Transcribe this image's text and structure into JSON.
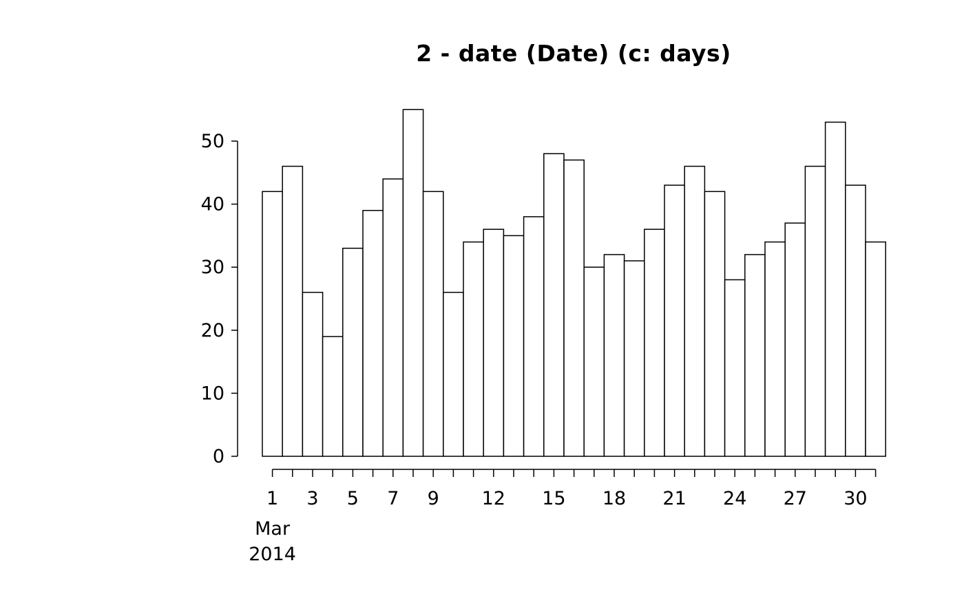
{
  "title": "2 - date (Date) (c: days)",
  "chart_data": {
    "type": "bar",
    "title": "2 - date (Date) (c: days)",
    "xlabel": "",
    "ylabel": "",
    "x": [
      1,
      2,
      3,
      4,
      5,
      6,
      7,
      8,
      9,
      10,
      11,
      12,
      13,
      14,
      15,
      16,
      17,
      18,
      19,
      20,
      21,
      22,
      23,
      24,
      25,
      26,
      27,
      28,
      29,
      30,
      31
    ],
    "values": [
      42,
      46,
      26,
      19,
      33,
      39,
      44,
      55,
      42,
      26,
      34,
      36,
      35,
      38,
      48,
      47,
      30,
      32,
      31,
      36,
      43,
      46,
      42,
      28,
      32,
      34,
      37,
      46,
      53,
      43,
      34
    ],
    "ylim": [
      0,
      55
    ],
    "y_ticks": [
      0,
      10,
      20,
      30,
      40,
      50
    ],
    "x_tick_labels": [
      1,
      3,
      5,
      7,
      9,
      12,
      15,
      18,
      21,
      24,
      27,
      30
    ],
    "x_axis_month": "Mar",
    "x_axis_year": "2014",
    "bar_fill": "#ffffff",
    "bar_stroke": "#000000",
    "axis_color": "#000000",
    "grid": false,
    "legend": "none"
  }
}
